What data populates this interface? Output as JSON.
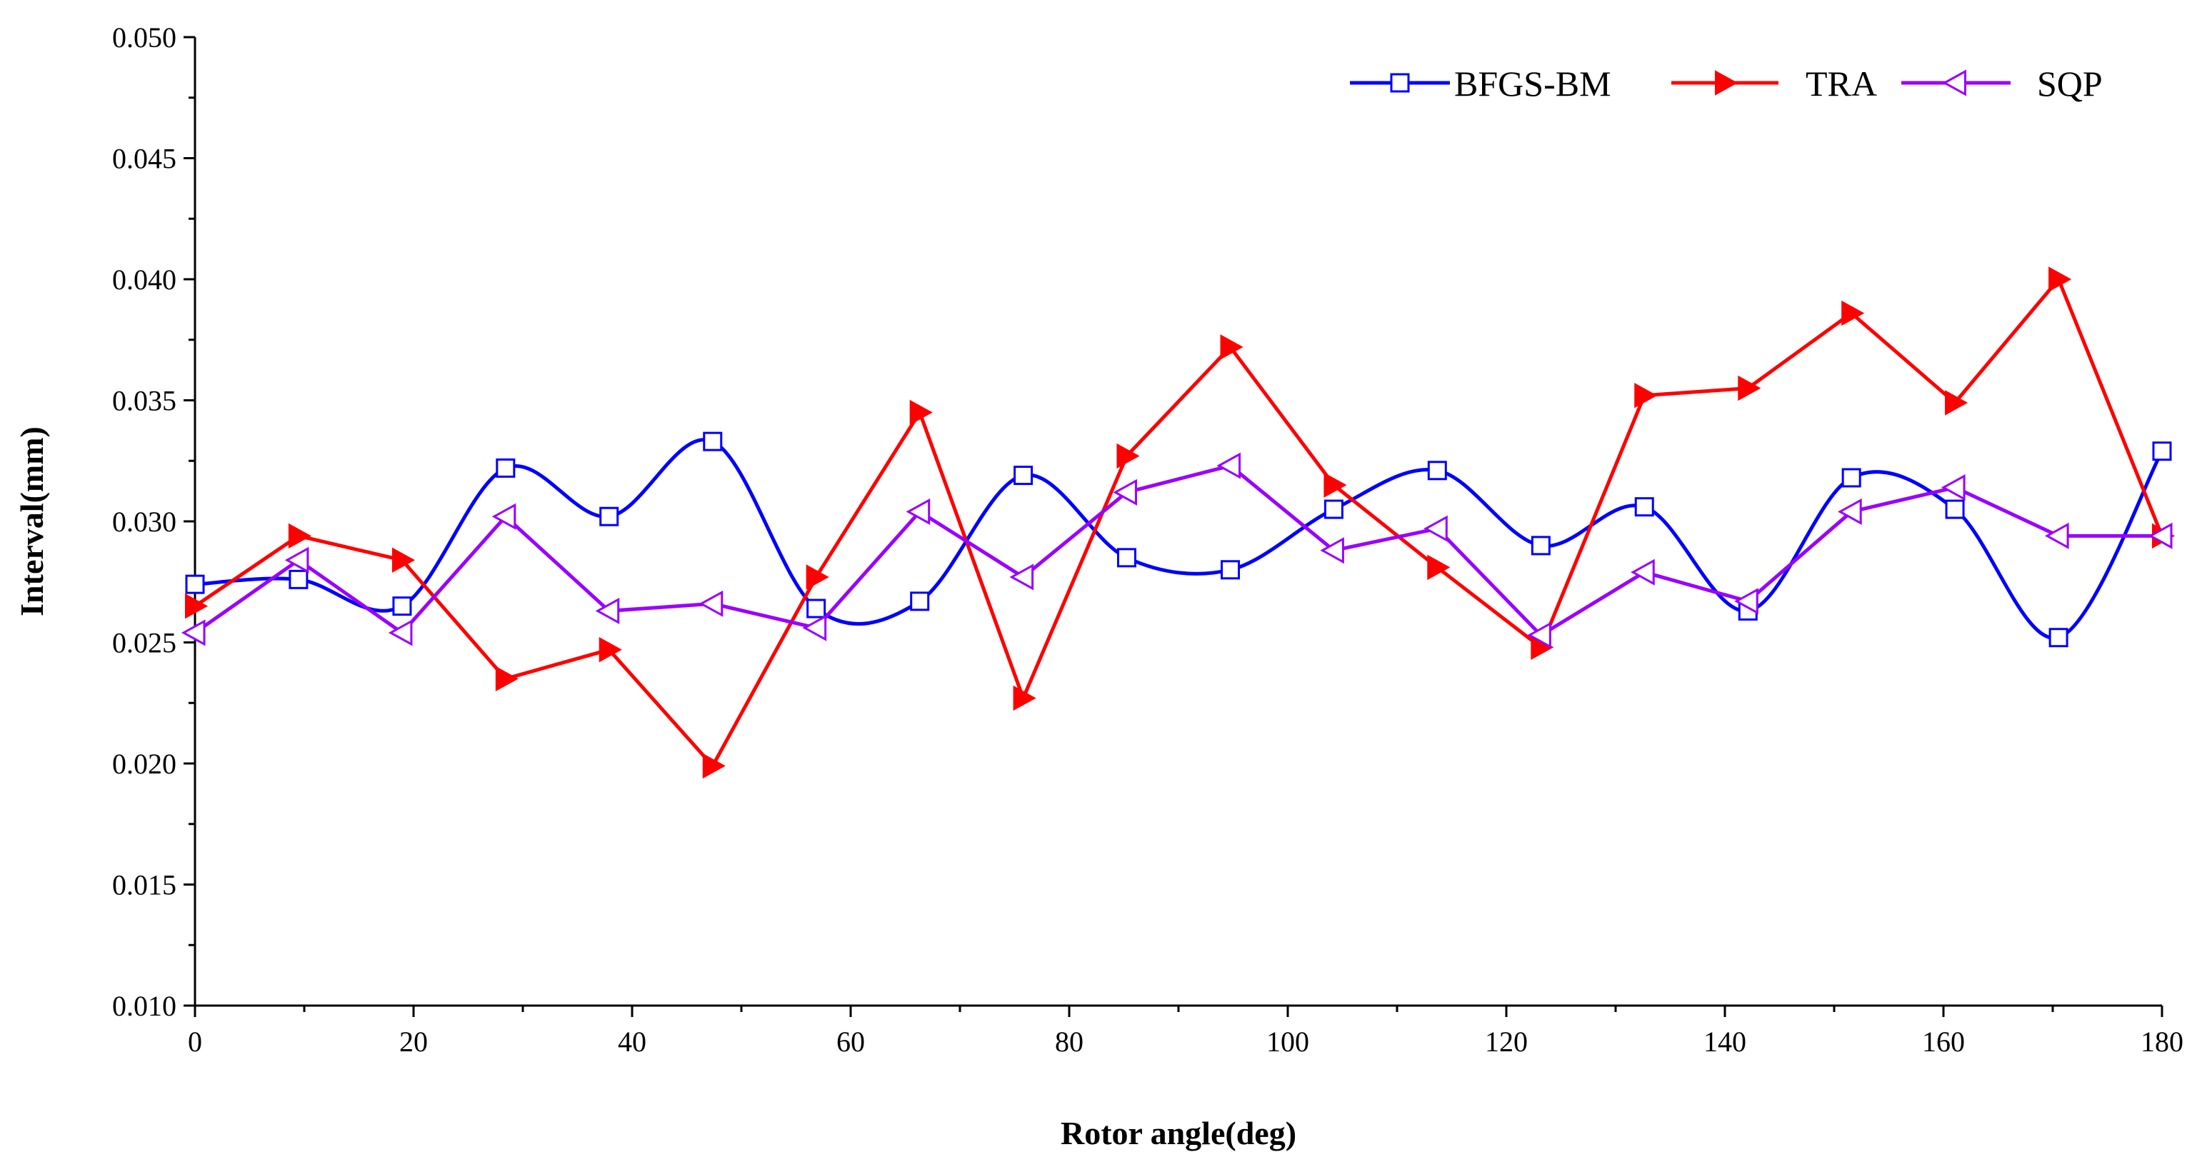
{
  "chart_data": {
    "type": "line",
    "title": "",
    "xlabel": "Rotor angle(deg)",
    "ylabel": "Interval(mm)",
    "xlim": [
      0,
      180
    ],
    "ylim": [
      0.01,
      0.05
    ],
    "xticks": [
      "0",
      "20",
      "40",
      "60",
      "80",
      "100",
      "120",
      "140",
      "160",
      "180"
    ],
    "yticks": [
      "0.010",
      "0.015",
      "0.020",
      "0.025",
      "0.030",
      "0.035",
      "0.040",
      "0.045",
      "0.050"
    ],
    "grid": false,
    "legend_position": "top-right",
    "x": [
      0,
      9.47,
      18.95,
      28.42,
      37.89,
      47.37,
      56.84,
      66.32,
      75.79,
      85.26,
      94.74,
      104.21,
      113.68,
      123.16,
      132.63,
      142.11,
      151.58,
      161.05,
      170.53,
      180
    ],
    "series": [
      {
        "name": "BFGS-BM",
        "color": "#0000ff",
        "marker": "square-open",
        "smooth": true,
        "values": [
          0.0274,
          0.0276,
          0.0265,
          0.0322,
          0.0302,
          0.0333,
          0.0264,
          0.0267,
          0.0319,
          0.0285,
          0.028,
          0.0305,
          0.0321,
          0.029,
          0.0306,
          0.0263,
          0.0318,
          0.0305,
          0.0252,
          0.0329
        ]
      },
      {
        "name": "TRA",
        "color": "#ff0000",
        "marker": "triangle-right-filled",
        "smooth": false,
        "values": [
          0.0265,
          0.0294,
          0.0284,
          0.0235,
          0.0247,
          0.0199,
          0.0277,
          0.0345,
          0.0227,
          0.0327,
          0.0372,
          0.0315,
          0.0281,
          0.0248,
          0.0352,
          0.0355,
          0.0386,
          0.0349,
          0.04,
          0.0294
        ]
      },
      {
        "name": "SQP",
        "color": "#9900ff",
        "marker": "triangle-left-open",
        "smooth": false,
        "values": [
          0.0254,
          0.0284,
          0.0254,
          0.0302,
          0.0263,
          0.0266,
          0.0256,
          0.0304,
          0.0277,
          0.0312,
          0.0323,
          0.0288,
          0.0297,
          0.0253,
          0.0279,
          0.0267,
          0.0304,
          0.0314,
          0.0294,
          0.0294
        ]
      }
    ]
  }
}
